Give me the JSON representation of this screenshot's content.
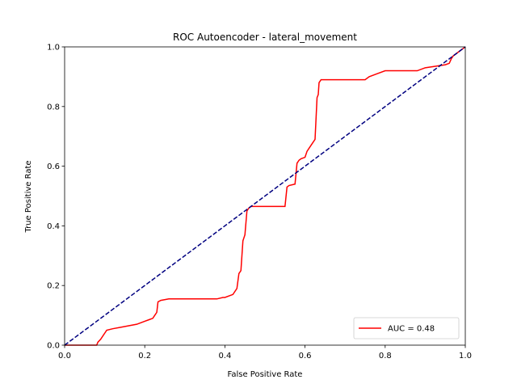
{
  "chart_data": {
    "type": "line",
    "title": "ROC Autoencoder - lateral_movement",
    "xlabel": "False Positive Rate",
    "ylabel": "True Positive Rate",
    "xlim": [
      0.0,
      1.0
    ],
    "ylim": [
      0.0,
      1.0
    ],
    "xticks": [
      "0.0",
      "0.2",
      "0.4",
      "0.6",
      "0.8",
      "1.0"
    ],
    "yticks": [
      "0.0",
      "0.2",
      "0.4",
      "0.6",
      "0.8",
      "1.0"
    ],
    "grid": false,
    "legend_position": "lower-right",
    "series": [
      {
        "name": "AUC = 0.48",
        "color": "#ff0000",
        "style": "solid",
        "x": [
          0.0,
          0.08,
          0.083,
          0.09,
          0.1,
          0.105,
          0.12,
          0.14,
          0.16,
          0.18,
          0.19,
          0.2,
          0.21,
          0.22,
          0.225,
          0.23,
          0.233,
          0.24,
          0.26,
          0.3,
          0.34,
          0.38,
          0.395,
          0.4,
          0.42,
          0.43,
          0.435,
          0.44,
          0.445,
          0.45,
          0.455,
          0.46,
          0.465,
          0.55,
          0.555,
          0.56,
          0.575,
          0.58,
          0.585,
          0.59,
          0.6,
          0.605,
          0.61,
          0.62,
          0.625,
          0.63,
          0.633,
          0.635,
          0.64,
          0.65,
          0.7,
          0.75,
          0.76,
          0.78,
          0.8,
          0.88,
          0.9,
          0.95,
          0.96,
          0.965,
          0.97,
          0.98,
          0.99,
          1.0
        ],
        "y": [
          0.0,
          0.0,
          0.01,
          0.02,
          0.04,
          0.05,
          0.055,
          0.06,
          0.065,
          0.07,
          0.075,
          0.08,
          0.085,
          0.09,
          0.1,
          0.11,
          0.145,
          0.15,
          0.155,
          0.155,
          0.155,
          0.155,
          0.16,
          0.16,
          0.17,
          0.19,
          0.24,
          0.25,
          0.35,
          0.37,
          0.45,
          0.46,
          0.465,
          0.465,
          0.53,
          0.535,
          0.54,
          0.61,
          0.62,
          0.625,
          0.63,
          0.65,
          0.66,
          0.68,
          0.69,
          0.83,
          0.84,
          0.88,
          0.89,
          0.89,
          0.89,
          0.89,
          0.9,
          0.91,
          0.92,
          0.92,
          0.93,
          0.94,
          0.945,
          0.96,
          0.97,
          0.98,
          0.99,
          1.0
        ]
      },
      {
        "name": "",
        "color": "#000080",
        "style": "dashed",
        "x": [
          0.0,
          1.0
        ],
        "y": [
          0.0,
          1.0
        ]
      }
    ],
    "legend": [
      "AUC = 0.48"
    ]
  }
}
